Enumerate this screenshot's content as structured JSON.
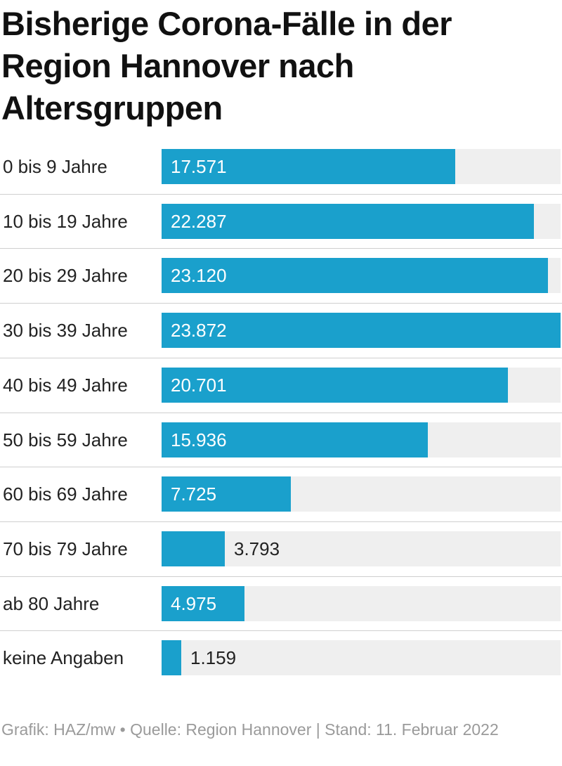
{
  "title": "Bisherige Corona-Fälle in der Region Hannover nach Altersgruppen",
  "footer": "Grafik: HAZ/mw • Quelle: Region Hannover | Stand: 11. Februar 2022",
  "colors": {
    "bar": "#1aa0cc",
    "track": "#efefef"
  },
  "chart_data": {
    "type": "bar",
    "orientation": "horizontal",
    "title": "Bisherige Corona-Fälle in der Region Hannover nach Altersgruppen",
    "categories": [
      "0 bis 9 Jahre",
      "10 bis 19 Jahre",
      "20 bis 29 Jahre",
      "30 bis 39 Jahre",
      "40 bis 49 Jahre",
      "50 bis 59 Jahre",
      "60 bis 69 Jahre",
      "70 bis 79 Jahre",
      "ab 80 Jahre",
      "keine Angaben"
    ],
    "values": [
      17571,
      22287,
      23120,
      23872,
      20701,
      15936,
      7725,
      3793,
      4975,
      1159
    ],
    "value_labels": [
      "17.571",
      "22.287",
      "23.120",
      "23.872",
      "20.701",
      "15.936",
      "7.725",
      "3.793",
      "4.975",
      "1.159"
    ],
    "xlim": [
      0,
      23872
    ],
    "grid": false,
    "legend": "none"
  }
}
